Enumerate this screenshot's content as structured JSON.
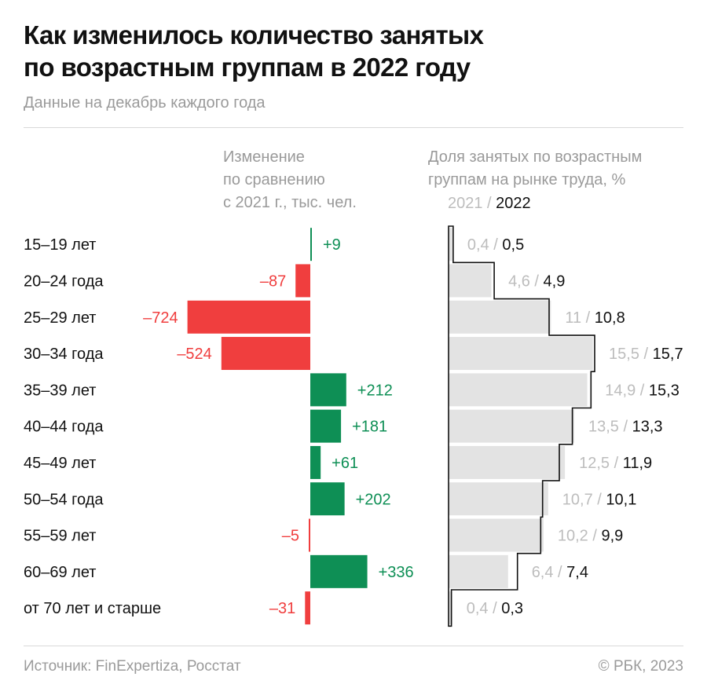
{
  "header": {
    "title_line1": "Как изменилось количество занятых",
    "title_line2": "по возрастным группам в 2022 году",
    "subtitle": "Данные на декабрь каждого года"
  },
  "columns": {
    "change_line1": "Изменение",
    "change_line2": "по сравнению",
    "change_line3": "с 2021 г., тыс. чел.",
    "share_line1": "Доля занятых по возрастным",
    "share_line2": "группам на рынке труда, %",
    "share_year_prev": "2021",
    "share_year_sep": " / ",
    "share_year_cur": "2022"
  },
  "footer": {
    "source": "Источник: FinExpertiza, Росстат",
    "copyright": "© РБК, 2023"
  },
  "colors": {
    "positive": "#0e8f55",
    "negative": "#f03e3e",
    "share_fill": "#e3e3e3",
    "share_outline": "#111111",
    "muted_text": "#bdbdbd"
  },
  "chart_data": [
    {
      "type": "bar",
      "orientation": "horizontal",
      "categories": [
        "15–19 лет",
        "20–24 года",
        "25–29 лет",
        "30–34 года",
        "35–39 лет",
        "40–44 года",
        "45–49 лет",
        "50–54 года",
        "55–59 лет",
        "60–69 лет",
        "от 70 лет и старше"
      ],
      "values": [
        9,
        -87,
        -724,
        -524,
        212,
        181,
        61,
        202,
        -5,
        336,
        -31
      ],
      "value_labels": [
        "+9",
        "–87",
        "–724",
        "–524",
        "+212",
        "+181",
        "+61",
        "+202",
        "–5",
        "+336",
        "–31"
      ]
    },
    {
      "type": "bar",
      "orientation": "horizontal",
      "categories": [
        "15–19 лет",
        "20–24 года",
        "25–29 лет",
        "30–34 года",
        "35–39 лет",
        "40–44 года",
        "45–49 лет",
        "50–54 года",
        "55–59 лет",
        "60–69 лет",
        "от 70 лет и старше"
      ],
      "series": [
        {
          "name": "2021",
          "values": [
            0.4,
            4.6,
            11,
            15.5,
            14.9,
            13.5,
            12.5,
            10.7,
            10.2,
            6.4,
            0.4
          ],
          "labels": [
            "0,4",
            "4,6",
            "11",
            "15,5",
            "14,9",
            "13,5",
            "12,5",
            "10,7",
            "10,2",
            "6,4",
            "0,4"
          ]
        },
        {
          "name": "2022",
          "values": [
            0.5,
            4.9,
            10.8,
            15.7,
            15.3,
            13.3,
            11.9,
            10.1,
            9.9,
            7.4,
            0.3
          ],
          "labels": [
            "0,5",
            "4,9",
            "10,8",
            "15,7",
            "15,3",
            "13,3",
            "11,9",
            "10,1",
            "9,9",
            "7,4",
            "0,3"
          ]
        }
      ]
    }
  ]
}
